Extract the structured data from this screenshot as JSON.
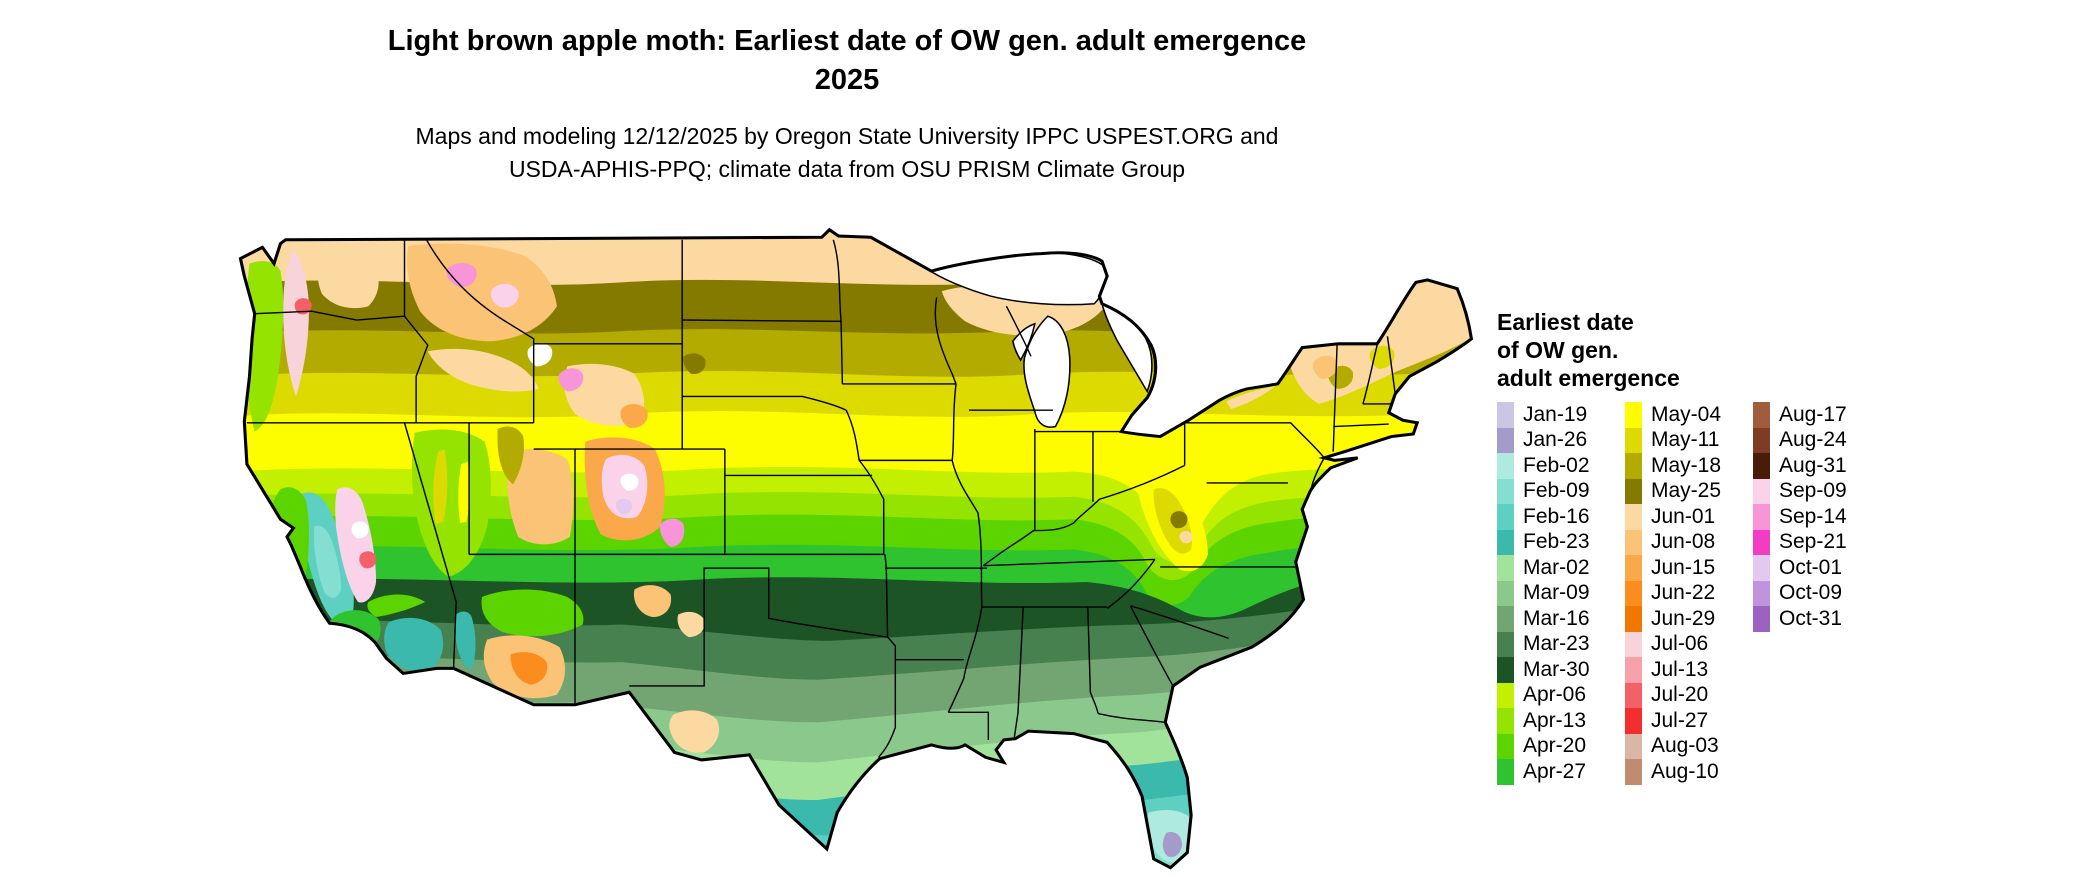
{
  "title": {
    "line1": "Light brown apple moth: Earliest date of OW gen. adult emergence",
    "line2": "2025"
  },
  "subtitle": {
    "line1": "Maps and modeling 12/12/2025 by Oregon State University IPPC USPEST.ORG and",
    "line2": "USDA-APHIS-PPQ; climate data from OSU PRISM Climate Group"
  },
  "legend": {
    "title_lines": [
      "Earliest date",
      "of OW gen.",
      "adult emergence"
    ],
    "columns": [
      {
        "entries": [
          {
            "label": "Jan-19",
            "color": "#ccc6e6"
          },
          {
            "label": "Jan-26",
            "color": "#a49bca"
          },
          {
            "label": "Feb-02",
            "color": "#aeeade"
          },
          {
            "label": "Feb-09",
            "color": "#84dfd2"
          },
          {
            "label": "Feb-16",
            "color": "#5ed0c2"
          },
          {
            "label": "Feb-23",
            "color": "#3ab9ac"
          },
          {
            "label": "Mar-02",
            "color": "#a2e39c"
          },
          {
            "label": "Mar-09",
            "color": "#8bc88b"
          },
          {
            "label": "Mar-16",
            "color": "#72a572"
          },
          {
            "label": "Mar-23",
            "color": "#47814f"
          },
          {
            "label": "Mar-30",
            "color": "#1c5426"
          },
          {
            "label": "Apr-06",
            "color": "#c3ef00"
          },
          {
            "label": "Apr-13",
            "color": "#94e300"
          },
          {
            "label": "Apr-20",
            "color": "#5cd400"
          },
          {
            "label": "Apr-27",
            "color": "#2fc42f"
          }
        ]
      },
      {
        "entries": [
          {
            "label": "May-04",
            "color": "#fdfd00"
          },
          {
            "label": "May-11",
            "color": "#dcda00"
          },
          {
            "label": "May-18",
            "color": "#b3ab00"
          },
          {
            "label": "May-25",
            "color": "#847a00"
          },
          {
            "label": "Jun-01",
            "color": "#fbd9a0"
          },
          {
            "label": "Jun-08",
            "color": "#fac375"
          },
          {
            "label": "Jun-15",
            "color": "#faa84a"
          },
          {
            "label": "Jun-22",
            "color": "#fb8c1e"
          },
          {
            "label": "Jun-29",
            "color": "#f07800"
          },
          {
            "label": "Jul-06",
            "color": "#f8d3da"
          },
          {
            "label": "Jul-13",
            "color": "#f7a2aa"
          },
          {
            "label": "Jul-20",
            "color": "#f4606a"
          },
          {
            "label": "Jul-27",
            "color": "#f22e2e"
          },
          {
            "label": "Aug-03",
            "color": "#d9b6a5"
          },
          {
            "label": "Aug-10",
            "color": "#c18b70"
          }
        ]
      },
      {
        "entries": [
          {
            "label": "Aug-17",
            "color": "#a15c3d"
          },
          {
            "label": "Aug-24",
            "color": "#7e3c24"
          },
          {
            "label": "Aug-31",
            "color": "#4a1c08"
          },
          {
            "label": "Sep-09",
            "color": "#fad2ea"
          },
          {
            "label": "Sep-14",
            "color": "#f795d8"
          },
          {
            "label": "Sep-21",
            "color": "#f23cc3"
          },
          {
            "label": "Oct-01",
            "color": "#e3c9f0"
          },
          {
            "label": "Oct-09",
            "color": "#c193dd"
          },
          {
            "label": "Oct-31",
            "color": "#9a63c0"
          }
        ]
      }
    ]
  }
}
